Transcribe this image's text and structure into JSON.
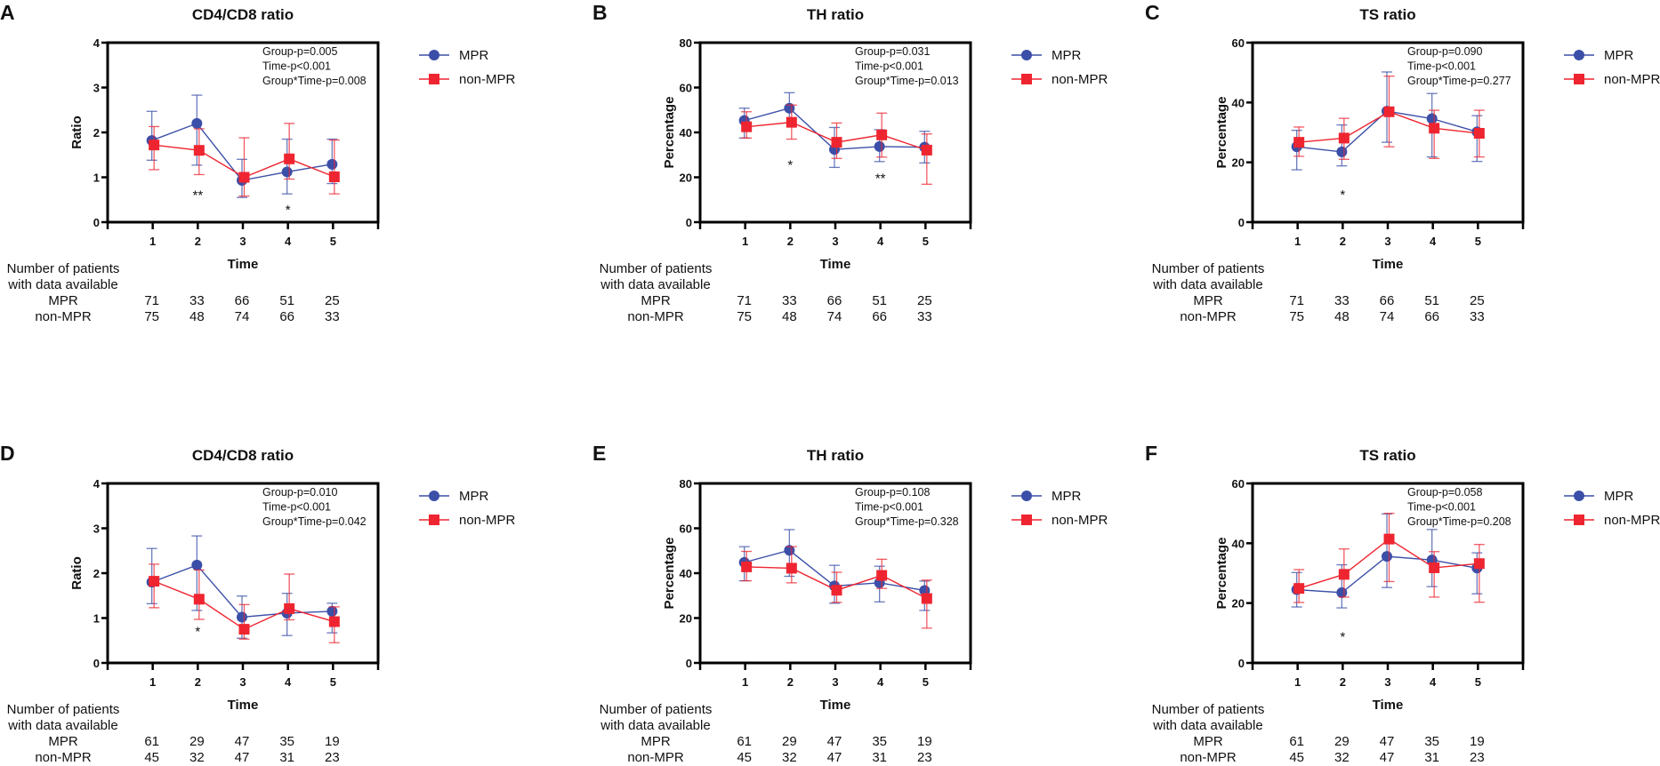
{
  "colors": {
    "mpr": "#3b4fa8",
    "non_mpr": "#ee2530"
  },
  "legend": [
    "MPR",
    "non-MPR"
  ],
  "table_header": [
    "Number of patients",
    "with data available"
  ],
  "chart_data": [
    {
      "type": "line",
      "letter": "A",
      "title": "CD4/CD8 ratio",
      "xlabel": "Time",
      "ylabel": "Ratio",
      "x": [
        1,
        2,
        3,
        4,
        5
      ],
      "xlim": [
        0,
        6
      ],
      "ylim": [
        0,
        4
      ],
      "yticks": [
        0,
        1,
        2,
        3,
        4
      ],
      "stats": [
        "Group-p=0.005",
        "Time-p<0.001",
        "Group*Time-p=0.008"
      ],
      "series": [
        {
          "name": "MPR",
          "values": [
            1.82,
            2.2,
            0.93,
            1.12,
            1.29
          ],
          "err_low": [
            1.38,
            1.27,
            0.55,
            0.63,
            0.86
          ],
          "err_high": [
            2.47,
            2.83,
            1.4,
            1.85,
            1.85
          ]
        },
        {
          "name": "non-MPR",
          "values": [
            1.72,
            1.6,
            1.0,
            1.41,
            1.01
          ],
          "err_low": [
            1.17,
            1.06,
            0.58,
            0.96,
            0.63
          ],
          "err_high": [
            2.13,
            2.08,
            1.88,
            2.2,
            1.83
          ]
        }
      ],
      "annotations": [
        {
          "x": 2,
          "y": 0.62,
          "text": "**"
        },
        {
          "x": 4,
          "y": 0.3,
          "text": "*"
        }
      ],
      "patients": {
        "MPR": [
          "71",
          "33",
          "66",
          "51",
          "25"
        ],
        "non-MPR": [
          "75",
          "48",
          "74",
          "66",
          "33"
        ]
      }
    },
    {
      "type": "line",
      "letter": "B",
      "title": "TH ratio",
      "xlabel": "Time",
      "ylabel": "Percentage",
      "x": [
        1,
        2,
        3,
        4,
        5
      ],
      "xlim": [
        0,
        6
      ],
      "ylim": [
        0,
        80
      ],
      "yticks": [
        0,
        20,
        40,
        60,
        80
      ],
      "stats": [
        "Group-p=0.031",
        "Time-p<0.001",
        "Group*Time-p=0.013"
      ],
      "series": [
        {
          "name": "MPR",
          "values": [
            45.3,
            50.8,
            32.4,
            33.7,
            33.4
          ],
          "err_low": [
            37.5,
            44.2,
            24.4,
            27.0,
            26.4
          ],
          "err_high": [
            50.8,
            57.7,
            42.2,
            41.2,
            40.5
          ]
        },
        {
          "name": "non-MPR",
          "values": [
            42.5,
            44.5,
            35.6,
            38.9,
            32.1
          ],
          "err_low": [
            37.5,
            37.0,
            28.4,
            29.0,
            16.9
          ],
          "err_high": [
            49.2,
            52.2,
            44.2,
            48.6,
            39.3
          ]
        }
      ],
      "annotations": [
        {
          "x": 2,
          "y": 26,
          "text": "*"
        },
        {
          "x": 4,
          "y": 20,
          "text": "**"
        }
      ],
      "patients": {
        "MPR": [
          "71",
          "33",
          "66",
          "51",
          "25"
        ],
        "non-MPR": [
          "75",
          "48",
          "74",
          "66",
          "33"
        ]
      }
    },
    {
      "type": "line",
      "letter": "C",
      "title": "TS ratio",
      "xlabel": "Time",
      "ylabel": "Percentage",
      "x": [
        1,
        2,
        3,
        4,
        5
      ],
      "xlim": [
        0,
        6
      ],
      "ylim": [
        0,
        60
      ],
      "yticks": [
        0,
        20,
        40,
        60
      ],
      "stats": [
        "Group-p=0.090",
        "Time-p<0.001",
        "Group*Time-p=0.277"
      ],
      "series": [
        {
          "name": "MPR",
          "values": [
            25.2,
            23.5,
            37.1,
            34.6,
            30.2
          ],
          "err_low": [
            17.5,
            18.8,
            26.7,
            21.8,
            20.3
          ],
          "err_high": [
            30.7,
            32.5,
            50.2,
            43.0,
            35.6
          ]
        },
        {
          "name": "non-MPR",
          "values": [
            26.7,
            28.1,
            36.9,
            31.4,
            29.7
          ],
          "err_low": [
            22.0,
            21.0,
            25.2,
            21.3,
            21.8
          ],
          "err_high": [
            31.8,
            34.7,
            48.8,
            37.4,
            37.4
          ]
        }
      ],
      "annotations": [
        {
          "x": 2,
          "y": 9.5,
          "text": "*"
        }
      ],
      "patients": {
        "MPR": [
          "71",
          "33",
          "66",
          "51",
          "25"
        ],
        "non-MPR": [
          "75",
          "48",
          "74",
          "66",
          "33"
        ]
      }
    },
    {
      "type": "line",
      "letter": "D",
      "title": "CD4/CD8 ratio",
      "xlabel": "Time",
      "ylabel": "Ratio",
      "x": [
        1,
        2,
        3,
        4,
        5
      ],
      "xlim": [
        0,
        6
      ],
      "ylim": [
        0,
        4
      ],
      "yticks": [
        0,
        1,
        2,
        3,
        4
      ],
      "stats": [
        "Group-p=0.010",
        "Time-p<0.001",
        "Group*Time-p=0.042"
      ],
      "series": [
        {
          "name": "MPR",
          "values": [
            1.8,
            2.18,
            1.02,
            1.11,
            1.15
          ],
          "err_low": [
            1.32,
            1.17,
            0.55,
            0.61,
            0.67
          ],
          "err_high": [
            2.55,
            2.83,
            1.49,
            1.55,
            1.33
          ]
        },
        {
          "name": "non-MPR",
          "values": [
            1.82,
            1.42,
            0.75,
            1.21,
            0.92
          ],
          "err_low": [
            1.23,
            0.97,
            0.53,
            0.96,
            0.45
          ],
          "err_high": [
            2.2,
            2.07,
            1.3,
            1.98,
            1.25
          ]
        }
      ],
      "annotations": [
        {
          "x": 2,
          "y": 0.72,
          "text": "*"
        }
      ],
      "patients": {
        "MPR": [
          "61",
          "29",
          "47",
          "35",
          "19"
        ],
        "non-MPR": [
          "45",
          "32",
          "47",
          "31",
          "23"
        ]
      }
    },
    {
      "type": "line",
      "letter": "E",
      "title": "TH ratio",
      "xlabel": "Time",
      "ylabel": "Percentage",
      "x": [
        1,
        2,
        3,
        4,
        5
      ],
      "xlim": [
        0,
        6
      ],
      "ylim": [
        0,
        80
      ],
      "yticks": [
        0,
        20,
        40,
        60,
        80
      ],
      "stats": [
        "Group-p=0.108",
        "Time-p<0.001",
        "Group*Time-p=0.328"
      ],
      "series": [
        {
          "name": "MPR",
          "values": [
            44.8,
            50.2,
            34.3,
            35.7,
            32.3
          ],
          "err_low": [
            36.6,
            38.6,
            26.6,
            27.2,
            23.4
          ],
          "err_high": [
            51.8,
            59.4,
            43.5,
            43.1,
            36.5
          ]
        },
        {
          "name": "non-MPR",
          "values": [
            42.8,
            42.2,
            32.4,
            39.0,
            28.7
          ],
          "err_low": [
            36.6,
            35.7,
            27.0,
            33.2,
            15.5
          ],
          "err_high": [
            49.7,
            51.8,
            40.4,
            46.2,
            36.9
          ]
        }
      ],
      "annotations": [],
      "patients": {
        "MPR": [
          "61",
          "29",
          "47",
          "35",
          "19"
        ],
        "non-MPR": [
          "45",
          "32",
          "47",
          "31",
          "23"
        ]
      }
    },
    {
      "type": "line",
      "letter": "F",
      "title": "TS ratio",
      "xlabel": "Time",
      "ylabel": "Percentage",
      "x": [
        1,
        2,
        3,
        4,
        5
      ],
      "xlim": [
        0,
        6
      ],
      "ylim": [
        0,
        60
      ],
      "yticks": [
        0,
        20,
        40,
        60
      ],
      "stats": [
        "Group-p=0.058",
        "Time-p<0.001",
        "Group*Time-p=0.208"
      ],
      "series": [
        {
          "name": "MPR",
          "values": [
            24.5,
            23.5,
            35.6,
            34.4,
            31.7
          ],
          "err_low": [
            18.7,
            18.4,
            25.2,
            25.5,
            23.1
          ],
          "err_high": [
            30.2,
            32.8,
            49.8,
            44.6,
            36.8
          ]
        },
        {
          "name": "non-MPR",
          "values": [
            24.9,
            29.6,
            41.4,
            31.8,
            33.2
          ],
          "err_low": [
            20.2,
            22.0,
            27.2,
            22.0,
            20.3
          ],
          "err_high": [
            31.2,
            38.1,
            50.0,
            37.2,
            39.6
          ]
        }
      ],
      "annotations": [
        {
          "x": 2,
          "y": 9.0,
          "text": "*"
        }
      ],
      "patients": {
        "MPR": [
          "61",
          "29",
          "47",
          "35",
          "19"
        ],
        "non-MPR": [
          "45",
          "32",
          "47",
          "31",
          "23"
        ]
      }
    }
  ]
}
